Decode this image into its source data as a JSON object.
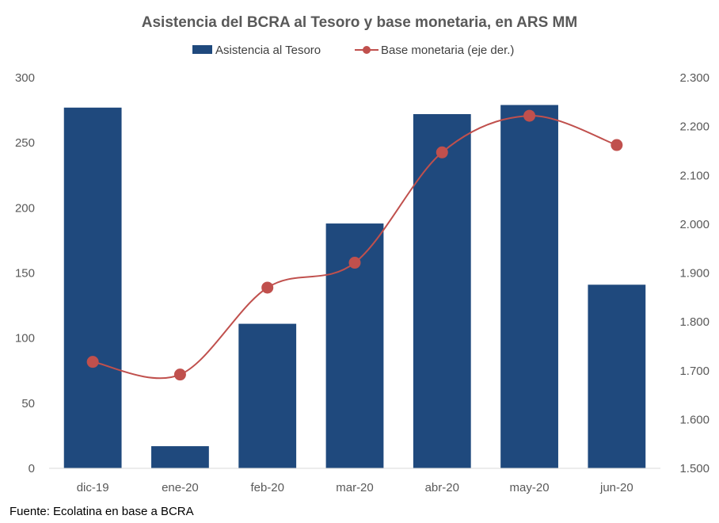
{
  "chart_data": {
    "type": "bar",
    "title": "Asistencia del BCRA al Tesoro y base monetaria, en ARS MM",
    "categories": [
      "dic-19",
      "ene-20",
      "feb-20",
      "mar-20",
      "abr-20",
      "may-20",
      "jun-20"
    ],
    "series": [
      {
        "name": "Asistencia al Tesoro",
        "type": "bar",
        "axis": "left",
        "color": "#1F497D",
        "values": [
          277,
          17,
          111,
          188,
          272,
          279,
          141
        ]
      },
      {
        "name": "Base monetaria (eje der.)",
        "type": "line",
        "axis": "right",
        "color": "#C0504D",
        "smooth": true,
        "values": [
          1718,
          1692,
          1870,
          1921,
          2147,
          2222,
          2162
        ]
      }
    ],
    "y_left": {
      "ylim": [
        0,
        300
      ],
      "ticks": [
        0,
        50,
        100,
        150,
        200,
        250,
        300
      ],
      "tick_labels": [
        "0",
        "50",
        "100",
        "150",
        "200",
        "250",
        "300"
      ]
    },
    "y_right": {
      "ylim": [
        1500,
        2300
      ],
      "ticks": [
        1500,
        1600,
        1700,
        1800,
        1900,
        2000,
        2100,
        2200,
        2300
      ],
      "tick_labels": [
        "1.500",
        "1.600",
        "1.700",
        "1.800",
        "1.900",
        "2.000",
        "2.100",
        "2.200",
        "2.300"
      ]
    },
    "grid": false,
    "legend_position": "top-center",
    "source": "Fuente: Ecolatina en base a BCRA"
  }
}
